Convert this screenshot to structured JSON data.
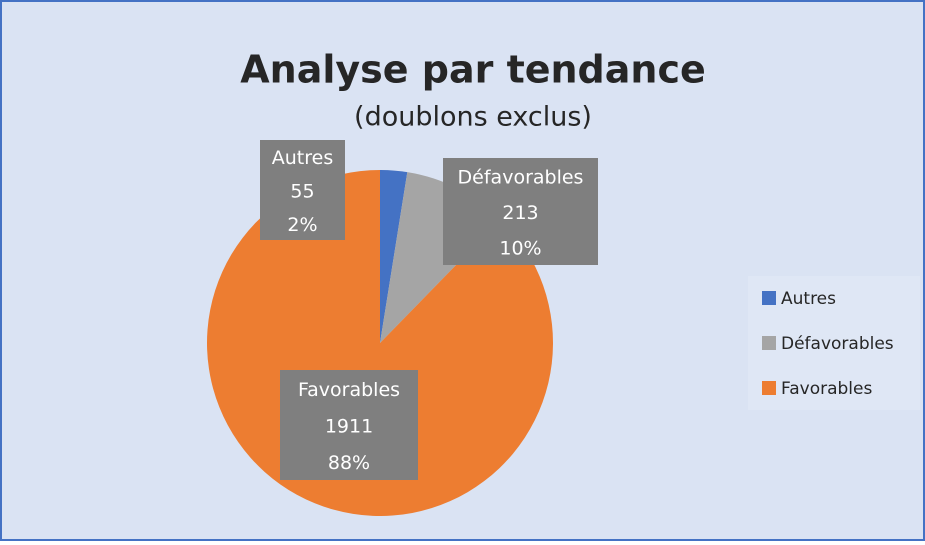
{
  "chart_data": {
    "type": "pie",
    "title": "Analyse par tendance",
    "subtitle": "(doublons exclus)",
    "categories": [
      "Autres",
      "Défavorables",
      "Favorables"
    ],
    "values": [
      55,
      213,
      1911
    ],
    "percent_labels": [
      "2%",
      "10%",
      "88%"
    ],
    "colors": [
      "#4472c4",
      "#a5a5a5",
      "#ed7d31"
    ],
    "legend": "right"
  }
}
